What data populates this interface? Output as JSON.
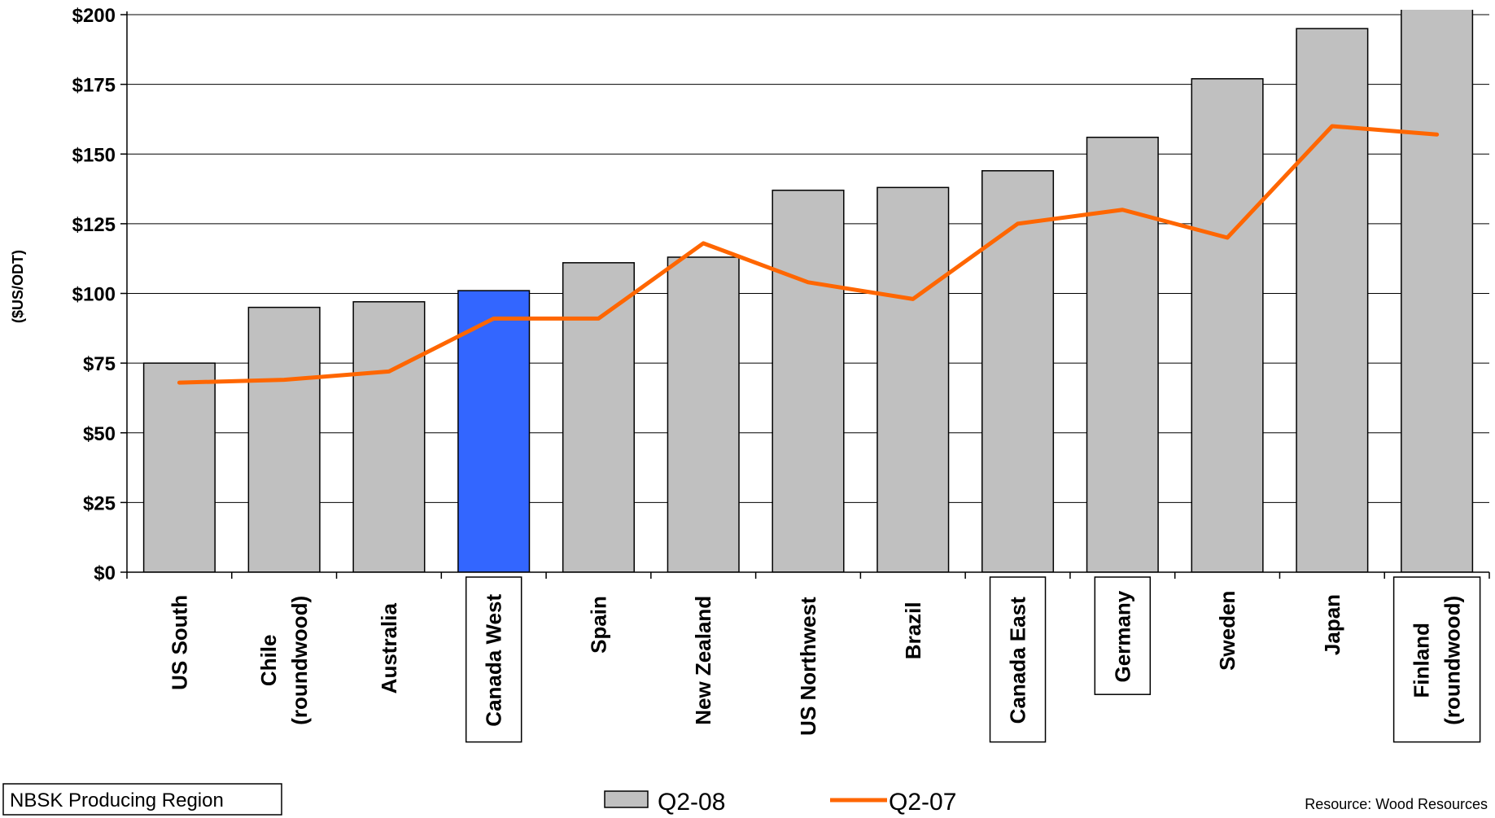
{
  "chart_data": {
    "type": "bar",
    "categories": [
      [
        "US South"
      ],
      [
        "Chile",
        "(roundwood)"
      ],
      [
        "Australia"
      ],
      [
        "Canada West"
      ],
      [
        "Spain"
      ],
      [
        "New Zealand"
      ],
      [
        "US Northwest"
      ],
      [
        "Brazil"
      ],
      [
        "Canada East"
      ],
      [
        "Germany"
      ],
      [
        "Sweden"
      ],
      [
        "Japan"
      ],
      [
        "Finland",
        "(roundwood)"
      ]
    ],
    "nbsk_flags": [
      false,
      false,
      false,
      true,
      false,
      false,
      false,
      false,
      true,
      true,
      false,
      false,
      true
    ],
    "highlight_index": 3,
    "series": [
      {
        "name": "Q2-08",
        "kind": "bar",
        "color": "#c0c0c0",
        "highlight_color": "#3366ff",
        "values": [
          75,
          95,
          97,
          101,
          111,
          113,
          137,
          138,
          144,
          156,
          177,
          195,
          202
        ]
      },
      {
        "name": "Q2-07",
        "kind": "line",
        "color": "#ff6600",
        "values": [
          68,
          69,
          72,
          91,
          91,
          118,
          104,
          98,
          125,
          130,
          120,
          160,
          157
        ]
      }
    ],
    "ylabel": "($US/ODT)",
    "ylim": [
      0,
      200
    ],
    "yticks": [
      "$0",
      "$25",
      "$50",
      "$75",
      "$100",
      "$125",
      "$150",
      "$175",
      "$200"
    ],
    "ytick_values": [
      0,
      25,
      50,
      75,
      100,
      125,
      150,
      175,
      200
    ],
    "grid": true,
    "legend": {
      "placement": "bottom-center",
      "entries": [
        "Q2-08",
        "Q2-07"
      ]
    }
  },
  "region_key": {
    "label": "NBSK Producing Region"
  },
  "source": "Resource: Wood Resources"
}
